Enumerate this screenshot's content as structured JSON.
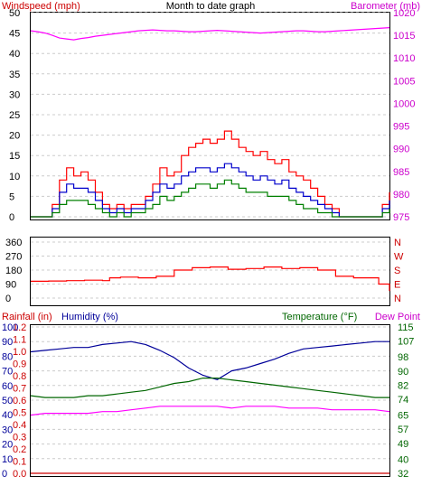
{
  "colors": {
    "wind": "#ff0000",
    "gust": "#0000cc",
    "windLow": "#008000",
    "baro": "#ff00ff",
    "dir": "#ff0000",
    "rainfall": "#cc0000",
    "humidity": "#000099",
    "temperature": "#006600",
    "dewpoint": "#ff00ff",
    "grid": "#cccccc",
    "frame": "#000000"
  },
  "top_panel": {
    "left_label": "Windspeed (mph)",
    "title": "Month to date graph",
    "right_label": "Barometer (mb)"
  },
  "bottom_panel": {
    "rainfall_label": "Rainfall (in)",
    "humidity_label": "Humidity (%)",
    "temperature_label": "Temperature (°F)",
    "dewpoint_label": "Dew Point"
  },
  "chart_data": [
    {
      "type": "line",
      "panel": "wind-barometer",
      "title": "Month to date graph",
      "left_axis": {
        "label": "Windspeed (mph)",
        "range": [
          0,
          50
        ],
        "ticks": [
          "0",
          "5",
          "10",
          "15",
          "20",
          "25",
          "30",
          "35",
          "40",
          "45",
          "50"
        ]
      },
      "right_axis": {
        "label": "Barometer (mb)",
        "range": [
          975,
          1020
        ],
        "ticks": [
          "975",
          "980",
          "985",
          "990",
          "995",
          "1000",
          "1005",
          "1010",
          "1015",
          "1020"
        ]
      },
      "grid": true,
      "x": [
        0,
        2,
        4,
        6,
        8,
        10,
        12,
        14,
        16,
        18,
        20,
        22,
        24,
        26,
        28,
        30,
        32,
        34,
        36,
        38,
        40,
        42,
        44,
        46,
        48,
        50,
        52,
        54,
        56,
        58,
        60,
        62,
        64,
        66,
        68,
        70,
        72,
        74,
        76,
        78,
        80,
        82,
        84,
        86,
        88,
        90,
        92,
        94,
        96,
        98,
        100
      ],
      "series": [
        {
          "color_key": "wind",
          "axis": "left",
          "values": [
            0,
            0,
            0,
            3,
            9,
            12,
            10,
            11,
            9,
            6,
            3,
            2,
            3,
            2,
            3,
            3,
            5,
            8,
            12,
            10,
            11,
            15,
            17,
            18,
            19,
            18,
            19,
            21,
            19,
            17,
            16,
            15,
            16,
            14,
            13,
            14,
            11,
            10,
            9,
            7,
            5,
            3,
            2,
            0,
            0,
            0,
            0,
            0,
            0,
            3,
            6
          ]
        },
        {
          "color_key": "gust",
          "axis": "left",
          "values": [
            0,
            0,
            0,
            2,
            6,
            8,
            7,
            7,
            6,
            4,
            2,
            1,
            2,
            1,
            2,
            2,
            4,
            6,
            8,
            7,
            8,
            10,
            11,
            12,
            12,
            11,
            12,
            13,
            12,
            11,
            10,
            9,
            10,
            9,
            8,
            9,
            7,
            6,
            5,
            4,
            3,
            2,
            1,
            0,
            0,
            0,
            0,
            0,
            0,
            2,
            4
          ]
        },
        {
          "color_key": "windLow",
          "axis": "left",
          "values": [
            0,
            0,
            0,
            1,
            3,
            4,
            4,
            4,
            3,
            2,
            1,
            0,
            1,
            0,
            1,
            1,
            2,
            3,
            5,
            4,
            5,
            6,
            7,
            8,
            8,
            7,
            8,
            9,
            8,
            7,
            6,
            6,
            6,
            5,
            5,
            5,
            4,
            3,
            2,
            2,
            1,
            1,
            0,
            0,
            0,
            0,
            0,
            0,
            0,
            1,
            2
          ]
        },
        {
          "color_key": "baro",
          "axis": "right",
          "values": [
            1016,
            1015.8,
            1015.5,
            1015,
            1014.4,
            1014.2,
            1014,
            1014.3,
            1014.5,
            1014.8,
            1015,
            1015.2,
            1015.4,
            1015.6,
            1015.8,
            1016,
            1016.1,
            1016.2,
            1016.1,
            1016,
            1016,
            1015.9,
            1015.8,
            1015.8,
            1015.9,
            1016,
            1016.1,
            1016,
            1015.9,
            1015.8,
            1015.7,
            1015.6,
            1015.5,
            1015.6,
            1015.7,
            1015.8,
            1015.9,
            1016,
            1016,
            1015.9,
            1015.8,
            1015.8,
            1015.9,
            1016,
            1016.1,
            1016.2,
            1016.3,
            1016.4,
            1016.5,
            1016.6,
            1016.7
          ]
        }
      ]
    },
    {
      "type": "line",
      "panel": "wind-direction",
      "left_axis": {
        "range": [
          0,
          360
        ],
        "ticks": [
          "0",
          "90",
          "180",
          "270",
          "360"
        ]
      },
      "right_axis": {
        "ticks": [
          "N",
          "W",
          "S",
          "E",
          "N"
        ]
      },
      "grid": true,
      "x": [
        0,
        5,
        10,
        15,
        20,
        22,
        25,
        30,
        35,
        40,
        45,
        50,
        55,
        60,
        65,
        70,
        75,
        80,
        85,
        90,
        95,
        97,
        100
      ],
      "series": [
        {
          "color_key": "dir",
          "axis": "left",
          "values": [
            108,
            110,
            112,
            115,
            112,
            130,
            135,
            130,
            140,
            180,
            195,
            200,
            185,
            190,
            200,
            190,
            195,
            180,
            140,
            130,
            130,
            90,
            45
          ]
        }
      ]
    },
    {
      "type": "line",
      "panel": "humidity-temperature",
      "rainfall_axis": {
        "label": "Rainfall (in)",
        "range": [
          0,
          1.2
        ],
        "ticks": [
          "0.0",
          "0.1",
          "0.2",
          "0.3",
          "0.4",
          "0.5",
          "0.6",
          "0.7",
          "0.8",
          "0.9",
          "1.0",
          "1.1",
          "1.2"
        ]
      },
      "humidity_axis": {
        "label": "Humidity (%)",
        "range": [
          0,
          100
        ],
        "ticks": [
          "0",
          "10",
          "20",
          "30",
          "40",
          "50",
          "60",
          "70",
          "80",
          "90",
          "100"
        ]
      },
      "temperature_axis": {
        "label": "Temperature (°F)",
        "range": [
          32,
          115
        ],
        "ticks": [
          "32",
          "40",
          "49",
          "57",
          "65",
          "74",
          "82",
          "90",
          "98",
          "107",
          "115"
        ]
      },
      "grid": true,
      "x": [
        0,
        4,
        8,
        12,
        16,
        20,
        24,
        28,
        32,
        36,
        40,
        44,
        48,
        52,
        56,
        60,
        64,
        68,
        72,
        76,
        80,
        84,
        88,
        92,
        96,
        100
      ],
      "series": [
        {
          "name": "Humidity (%)",
          "color_key": "humidity",
          "axis": "humidity",
          "values": [
            83,
            84,
            85,
            86,
            86,
            88,
            89,
            90,
            88,
            84,
            79,
            72,
            67,
            64,
            70,
            72,
            75,
            78,
            82,
            85,
            86,
            87,
            88,
            89,
            90,
            90
          ]
        },
        {
          "name": "Temperature (°F)",
          "color_key": "temperature",
          "axis": "temperature",
          "values": [
            76,
            75,
            75,
            75,
            76,
            76,
            77,
            78,
            79,
            81,
            83,
            84,
            86,
            86,
            85,
            84,
            83,
            82,
            81,
            80,
            79,
            78,
            77,
            76,
            75,
            75
          ]
        },
        {
          "name": "Dew Point",
          "color_key": "dewpoint",
          "axis": "temperature",
          "values": [
            65,
            66,
            66,
            66,
            66,
            67,
            67,
            68,
            69,
            70,
            70,
            70,
            70,
            70,
            69,
            70,
            70,
            70,
            69,
            69,
            69,
            68,
            68,
            68,
            68,
            67
          ]
        },
        {
          "name": "Rainfall (in)",
          "color_key": "rainfall",
          "axis": "rainfall",
          "values": [
            0,
            0,
            0,
            0,
            0,
            0,
            0,
            0,
            0,
            0,
            0,
            0,
            0,
            0,
            0,
            0,
            0,
            0,
            0,
            0,
            0,
            0,
            0,
            0,
            0,
            0
          ]
        }
      ]
    }
  ]
}
